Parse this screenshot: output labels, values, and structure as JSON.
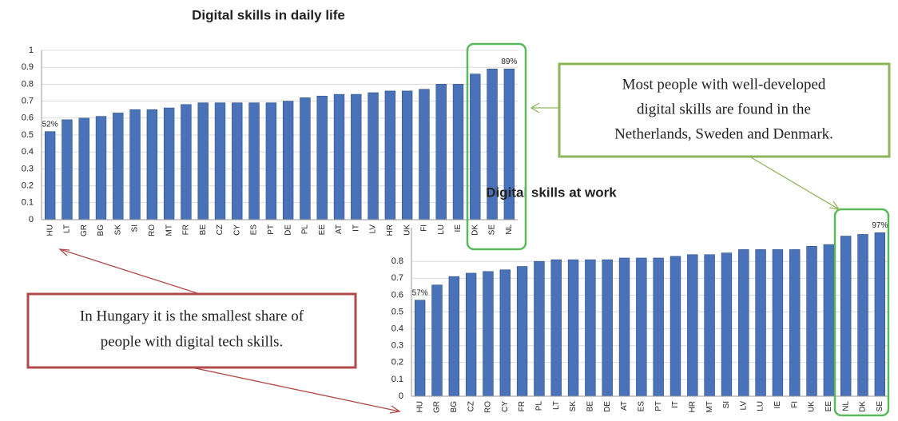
{
  "chart_data": [
    {
      "type": "bar",
      "title": "Digital skills in daily life",
      "categories": [
        "HU",
        "LT",
        "GR",
        "BG",
        "SK",
        "SI",
        "RO",
        "MT",
        "FR",
        "BE",
        "CZ",
        "CY",
        "ES",
        "PT",
        "DE",
        "PL",
        "EE",
        "AT",
        "IT",
        "LV",
        "HR",
        "UK",
        "FI",
        "LU",
        "IE",
        "DK",
        "SE",
        "NL"
      ],
      "values": [
        0.52,
        0.59,
        0.6,
        0.61,
        0.63,
        0.65,
        0.65,
        0.66,
        0.68,
        0.69,
        0.69,
        0.69,
        0.69,
        0.69,
        0.7,
        0.72,
        0.73,
        0.74,
        0.74,
        0.75,
        0.76,
        0.76,
        0.77,
        0.8,
        0.8,
        0.86,
        0.89,
        0.89
      ],
      "value_labels": [
        "52%",
        null,
        null,
        null,
        null,
        null,
        null,
        null,
        null,
        null,
        null,
        null,
        null,
        null,
        null,
        null,
        null,
        null,
        null,
        null,
        null,
        null,
        null,
        null,
        null,
        null,
        null,
        "89%"
      ],
      "color": "#4a72b8",
      "ylim": [
        0,
        1
      ],
      "yticks": [
        0,
        0.1,
        0.2,
        0.3,
        0.4,
        0.5,
        0.6,
        0.7,
        0.8,
        0.9,
        1
      ],
      "grid": true
    },
    {
      "type": "bar",
      "title": "Digital skills at work",
      "categories": [
        "HU",
        "GR",
        "BG",
        "CZ",
        "RO",
        "CY",
        "FR",
        "PL",
        "LT",
        "SK",
        "BE",
        "DE",
        "AT",
        "ES",
        "PT",
        "IT",
        "HR",
        "MT",
        "SI",
        "LV",
        "LU",
        "IE",
        "FI",
        "UK",
        "EE",
        "NL",
        "DK",
        "SE"
      ],
      "values": [
        0.57,
        0.66,
        0.71,
        0.73,
        0.74,
        0.75,
        0.77,
        0.8,
        0.81,
        0.81,
        0.81,
        0.81,
        0.82,
        0.82,
        0.82,
        0.83,
        0.84,
        0.84,
        0.85,
        0.87,
        0.87,
        0.87,
        0.87,
        0.89,
        0.9,
        0.95,
        0.96,
        0.97
      ],
      "value_labels": [
        "57%",
        null,
        null,
        null,
        null,
        null,
        null,
        null,
        null,
        null,
        null,
        null,
        null,
        null,
        null,
        null,
        null,
        null,
        null,
        null,
        null,
        null,
        null,
        null,
        null,
        null,
        null,
        "97%"
      ],
      "color": "#4a72b8",
      "ylim": [
        0,
        1
      ],
      "yticks": [
        0,
        0.1,
        0.2,
        0.3,
        0.4,
        0.5,
        0.6,
        0.7,
        0.8
      ],
      "grid": true
    }
  ],
  "annotations": [
    {
      "lines": [
        "Most people with well-developed",
        "digital skills are found in the",
        "Netherlands, Sweden and Denmark."
      ]
    },
    {
      "lines": [
        "In Hungary it is the smallest share of",
        "people with digital tech skills."
      ]
    }
  ]
}
